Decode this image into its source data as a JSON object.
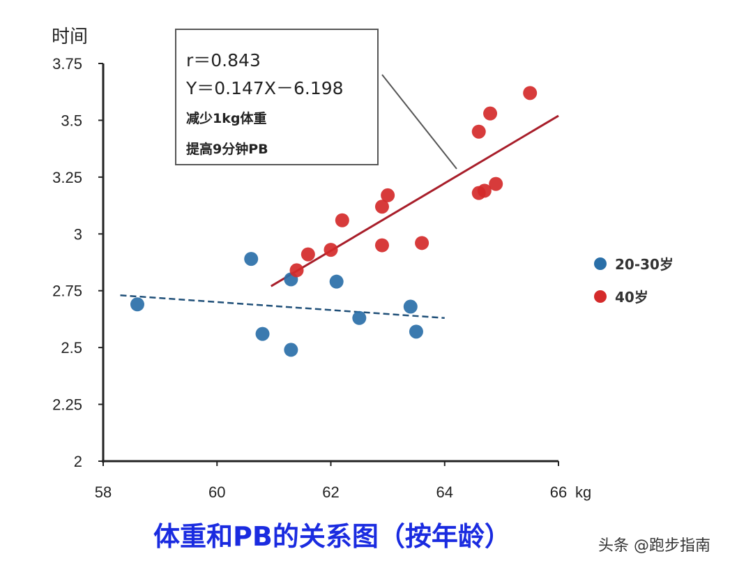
{
  "chart_data": {
    "type": "scatter",
    "title": "体重和PB的关系图（按年龄）",
    "xlabel": "kg",
    "ylabel": "时间",
    "xlim": [
      58,
      66
    ],
    "ylim": [
      2,
      3.75
    ],
    "x_ticks": [
      "58",
      "60",
      "62",
      "64",
      "66"
    ],
    "y_ticks": [
      "2",
      "2.25",
      "2.5",
      "2.75",
      "3",
      "3.25",
      "3.5",
      "3.75"
    ],
    "legend_placement": "right",
    "series": [
      {
        "name": "20-30岁",
        "color": "#2a6fa8",
        "points": [
          [
            58.6,
            2.69
          ],
          [
            60.6,
            2.89
          ],
          [
            60.8,
            2.56
          ],
          [
            61.3,
            2.8
          ],
          [
            61.3,
            2.49
          ],
          [
            62.1,
            2.79
          ],
          [
            62.5,
            2.63
          ],
          [
            63.4,
            2.68
          ],
          [
            63.5,
            2.57
          ]
        ],
        "trendline": {
          "style": "dashed",
          "from": [
            58.3,
            2.73
          ],
          "to": [
            64.0,
            2.63
          ]
        }
      },
      {
        "name": "40岁",
        "color": "#d42a2a",
        "points": [
          [
            61.4,
            2.84
          ],
          [
            61.6,
            2.91
          ],
          [
            62.0,
            2.93
          ],
          [
            62.2,
            3.06
          ],
          [
            62.9,
            3.12
          ],
          [
            63.0,
            3.17
          ],
          [
            62.9,
            2.95
          ],
          [
            63.6,
            2.96
          ],
          [
            64.6,
            3.45
          ],
          [
            64.8,
            3.53
          ],
          [
            64.6,
            3.18
          ],
          [
            64.7,
            3.19
          ],
          [
            64.9,
            3.22
          ],
          [
            65.5,
            3.62
          ]
        ],
        "trendline": {
          "style": "solid",
          "from": [
            60.95,
            2.77
          ],
          "to": [
            66.0,
            3.52
          ]
        }
      }
    ],
    "annotation": {
      "r": "r＝0.843",
      "equation": "Y＝0.147X－6.198",
      "line3": "减少1kg体重",
      "line4": "提高9分钟PB"
    }
  },
  "watermark": "头条 @跑步指南"
}
